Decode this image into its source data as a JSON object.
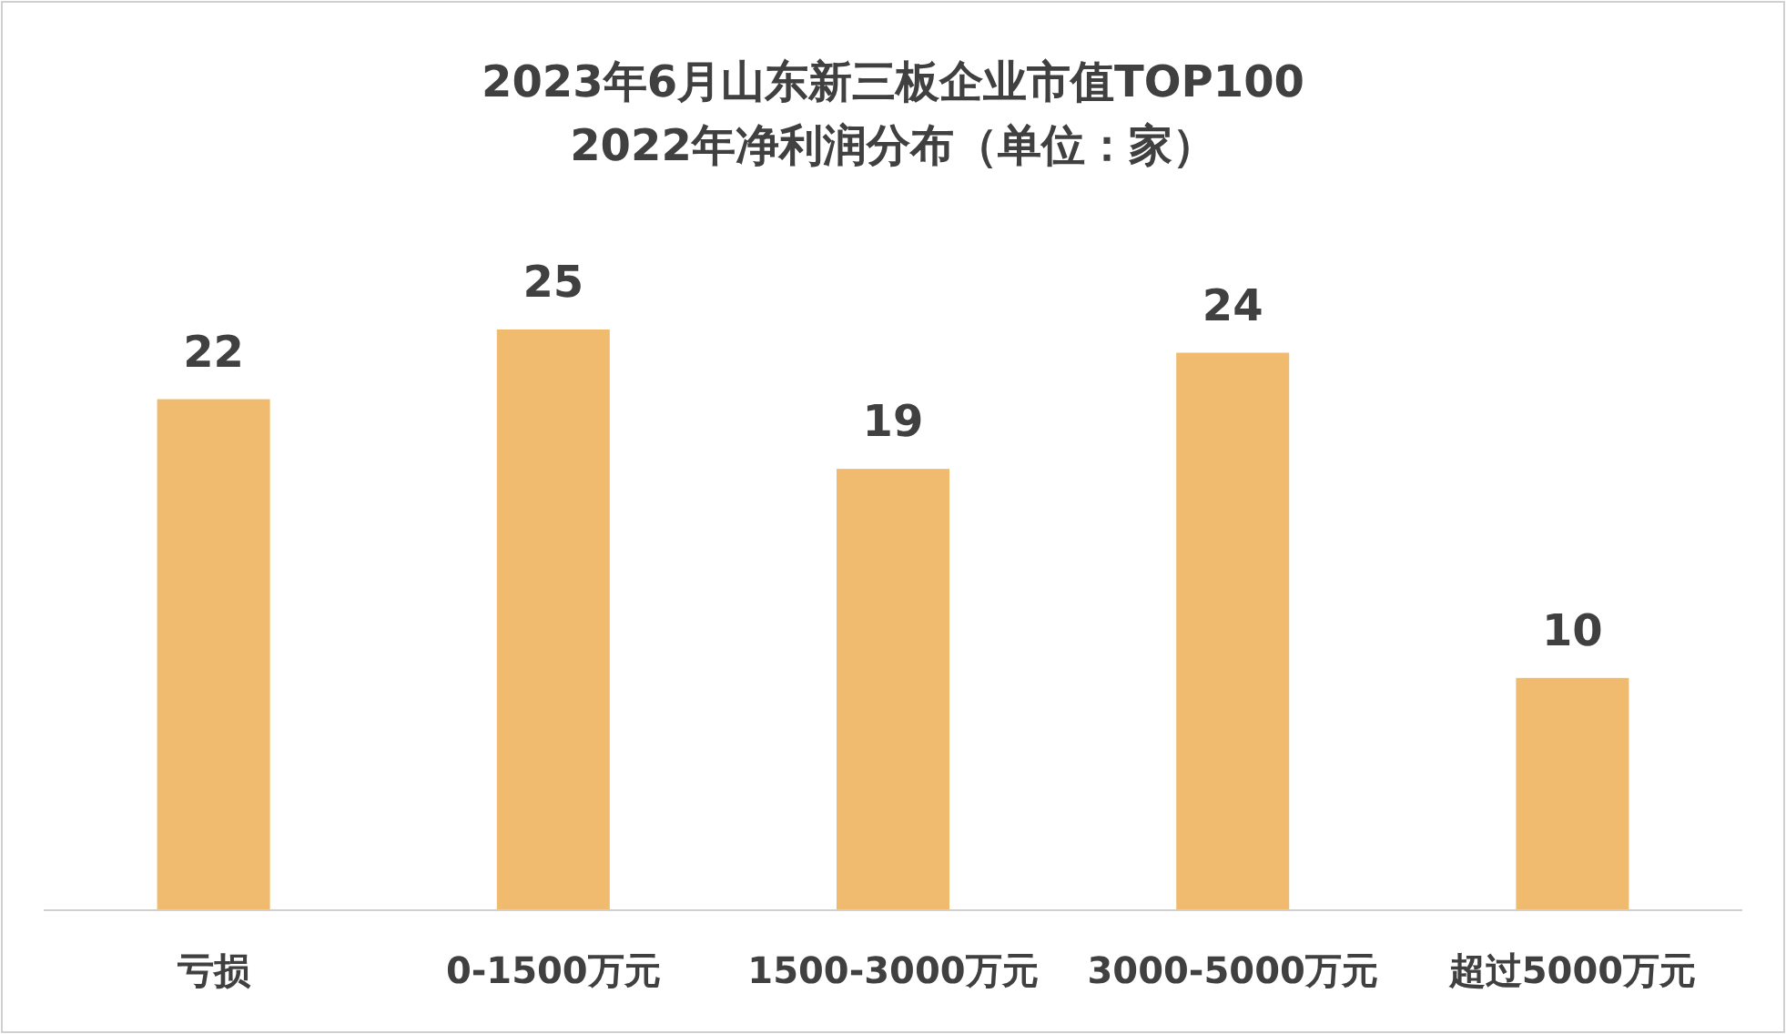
{
  "chart_data": {
    "type": "bar",
    "title": "2023年6月山东新三板企业市值TOP100",
    "subtitle": "2022年净利润分布（单位：家）",
    "categories": [
      "亏损",
      "0-1500万元",
      "1500-3000万元",
      "3000-5000万元",
      "超过5000万元"
    ],
    "values": [
      22,
      25,
      19,
      24,
      10
    ],
    "color": "#f0bb6f",
    "data_labels": true
  }
}
